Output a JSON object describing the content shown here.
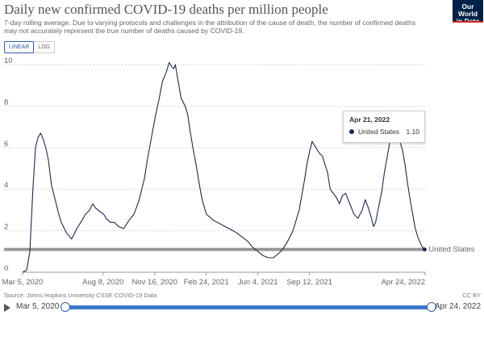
{
  "title": "Daily new confirmed COVID-19 deaths per million people",
  "subtitle": "7-day rolling average. Due to varying protocols and challenges in the attribution of the cause of death, the number of confirmed deaths may not accurately represent the true number of deaths caused by COVID-19.",
  "logo": {
    "line1": "Our World",
    "line2": "in Data"
  },
  "scale_toggle": {
    "linear": "LINEAR",
    "log": "LOG",
    "active": "linear"
  },
  "tooltip": {
    "date": "Apr 21, 2022",
    "series": "United States",
    "value": "1.10"
  },
  "source": "Source: Johns Hopkins University CSSE COVID-19 Data",
  "license": "CC BY",
  "timeline": {
    "start": "Mar 5, 2020",
    "end": "Apr 24, 2022"
  },
  "colors": {
    "line": "#1b2b4b",
    "reference_line": "#999999",
    "accent": "#3360a9"
  },
  "chart_data": {
    "type": "line",
    "title": "Daily new confirmed COVID-19 deaths per million people",
    "ylim": [
      0,
      10
    ],
    "y_ticks": [
      "0",
      "2",
      "4",
      "6",
      "8",
      "10"
    ],
    "x_ticks": [
      "Mar 5, 2020",
      "Aug 8, 2020",
      "Nov 16, 2020",
      "Feb 24, 2021",
      "Jun 4, 2021",
      "Sep 12, 2021",
      "Apr 24, 2022"
    ],
    "x_tick_days": [
      0,
      156,
      256,
      356,
      456,
      556,
      780
    ],
    "x_range_days": [
      0,
      780
    ],
    "grid": "horizontal dotted",
    "reference_line": {
      "y": 1.1
    },
    "series": [
      {
        "name": "United States",
        "end_label": "United States",
        "x_days": [
          0,
          8,
          14,
          20,
          25,
          30,
          35,
          40,
          45,
          50,
          56,
          62,
          70,
          75,
          85,
          95,
          105,
          115,
          122,
          130,
          136,
          141,
          146,
          151,
          157,
          162,
          170,
          178,
          186,
          196,
          206,
          216,
          226,
          236,
          241,
          246,
          252,
          258,
          265,
          271,
          278,
          284,
          289,
          293,
          296,
          300,
          303,
          307,
          311,
          315,
          320,
          324,
          330,
          336,
          342,
          348,
          356,
          370,
          385,
          400,
          415,
          425,
          436,
          446,
          456,
          466,
          476,
          486,
          496,
          504,
          514,
          524,
          530,
          536,
          541,
          546,
          551,
          556,
          561,
          566,
          571,
          576,
          581,
          586,
          591,
          596,
          602,
          608,
          614,
          620,
          626,
          634,
          642,
          650,
          658,
          664,
          670,
          676,
          680,
          684,
          688,
          692,
          696,
          701,
          706,
          711,
          716,
          721,
          726,
          731,
          736,
          741,
          746,
          751,
          756,
          761,
          766,
          771,
          775,
          779
        ],
        "values": [
          0,
          0.1,
          1,
          4,
          6,
          6.5,
          6.7,
          6.4,
          6,
          5.4,
          4.2,
          3.6,
          2.8,
          2.4,
          1.9,
          1.6,
          2.1,
          2.5,
          2.8,
          3,
          3.3,
          3.1,
          3.0,
          2.9,
          2.8,
          2.6,
          2.4,
          2.4,
          2.2,
          2.1,
          2.5,
          2.8,
          3.5,
          4.5,
          5.3,
          6.0,
          6.8,
          7.6,
          8.4,
          9.2,
          9.6,
          10.1,
          9.9,
          9.8,
          10.0,
          9.4,
          9.0,
          8.4,
          8.2,
          8.0,
          7.6,
          6.9,
          6.0,
          5.2,
          4.3,
          3.5,
          2.8,
          2.5,
          2.3,
          2.1,
          1.9,
          1.7,
          1.5,
          1.2,
          1.0,
          0.8,
          0.7,
          0.7,
          0.9,
          1.1,
          1.5,
          2.0,
          2.5,
          3.0,
          3.7,
          4.4,
          5.2,
          5.8,
          6.3,
          6.1,
          5.9,
          5.7,
          5.6,
          5.2,
          4.8,
          4.0,
          3.8,
          3.6,
          3.3,
          3.7,
          3.8,
          3.3,
          2.8,
          2.6,
          3.0,
          3.5,
          3.1,
          2.6,
          2.2,
          2.4,
          2.9,
          3.4,
          3.9,
          4.8,
          5.5,
          6.2,
          6.6,
          6.9,
          6.7,
          6.3,
          5.9,
          5.2,
          4.3,
          3.5,
          2.8,
          2.1,
          1.7,
          1.4,
          1.2,
          1.1
        ]
      }
    ]
  }
}
